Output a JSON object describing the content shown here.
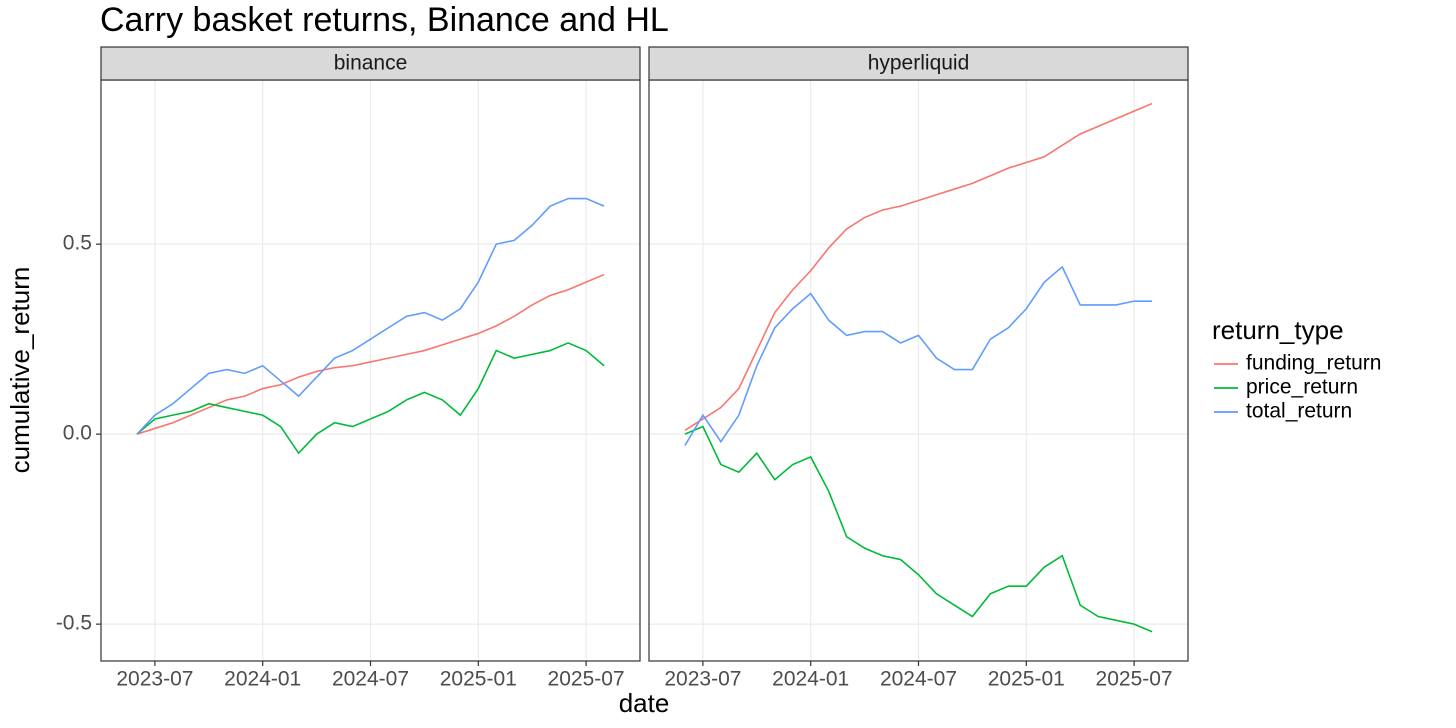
{
  "chart_data": {
    "type": "line",
    "title": "Carry basket returns, Binance and HL",
    "xlabel": "date",
    "ylabel": "cumulative_return",
    "legend_title": "return_type",
    "legend": "right",
    "grid": true,
    "x": [
      "2023-06",
      "2023-07",
      "2023-08",
      "2023-09",
      "2023-10",
      "2023-11",
      "2023-12",
      "2024-01",
      "2024-02",
      "2024-03",
      "2024-04",
      "2024-05",
      "2024-06",
      "2024-07",
      "2024-08",
      "2024-09",
      "2024-10",
      "2024-11",
      "2024-12",
      "2025-01",
      "2025-02",
      "2025-03",
      "2025-04",
      "2025-05",
      "2025-06",
      "2025-07",
      "2025-08"
    ],
    "xlim": [
      "2023-04",
      "2025-10"
    ],
    "xticks": [
      "2023-07",
      "2024-01",
      "2024-07",
      "2025-01",
      "2025-07"
    ],
    "ylim": [
      -0.597,
      0.932
    ],
    "yticks": [
      -0.5,
      {
        "value": 0,
        "label": "0.0"
      },
      0.5
    ],
    "series": [
      {
        "name": "funding_return",
        "color": "#F8766D"
      },
      {
        "name": "price_return",
        "color": "#00BA38"
      },
      {
        "name": "total_return",
        "color": "#619CFF"
      }
    ],
    "facets": [
      {
        "label": "binance",
        "values": [
          [
            0.0,
            0.015,
            0.03,
            0.05,
            0.07,
            0.09,
            0.1,
            0.12,
            0.13,
            0.15,
            0.165,
            0.175,
            0.18,
            0.19,
            0.2,
            0.21,
            0.22,
            0.235,
            0.25,
            0.265,
            0.285,
            0.31,
            0.34,
            0.365,
            0.38,
            0.4,
            0.42
          ],
          [
            0.0,
            0.04,
            0.05,
            0.06,
            0.08,
            0.07,
            0.06,
            0.05,
            0.02,
            -0.05,
            0.0,
            0.03,
            0.02,
            0.04,
            0.06,
            0.09,
            0.11,
            0.09,
            0.05,
            0.12,
            0.22,
            0.2,
            0.21,
            0.22,
            0.24,
            0.22,
            0.18
          ],
          [
            0.0,
            0.05,
            0.08,
            0.12,
            0.16,
            0.17,
            0.16,
            0.18,
            0.14,
            0.1,
            0.15,
            0.2,
            0.22,
            0.25,
            0.28,
            0.31,
            0.32,
            0.3,
            0.33,
            0.4,
            0.5,
            0.51,
            0.55,
            0.6,
            0.62,
            0.62,
            0.6
          ]
        ]
      },
      {
        "label": "hyperliquid",
        "values": [
          [
            0.01,
            0.04,
            0.07,
            0.12,
            0.22,
            0.32,
            0.38,
            0.43,
            0.49,
            0.54,
            0.57,
            0.59,
            0.6,
            0.615,
            0.63,
            0.645,
            0.66,
            0.68,
            0.7,
            0.715,
            0.73,
            0.76,
            0.79,
            0.81,
            0.83,
            0.85,
            0.87
          ],
          [
            0.0,
            0.02,
            -0.08,
            -0.1,
            -0.05,
            -0.12,
            -0.08,
            -0.06,
            -0.15,
            -0.27,
            -0.3,
            -0.32,
            -0.33,
            -0.37,
            -0.42,
            -0.45,
            -0.48,
            -0.42,
            -0.4,
            -0.4,
            -0.35,
            -0.32,
            -0.45,
            -0.48,
            -0.49,
            -0.5,
            -0.52
          ],
          [
            -0.03,
            0.05,
            -0.02,
            0.05,
            0.18,
            0.28,
            0.33,
            0.37,
            0.3,
            0.26,
            0.27,
            0.27,
            0.24,
            0.26,
            0.2,
            0.17,
            0.17,
            0.25,
            0.28,
            0.33,
            0.4,
            0.44,
            0.34,
            0.34,
            0.34,
            0.35,
            0.35
          ]
        ]
      }
    ]
  }
}
